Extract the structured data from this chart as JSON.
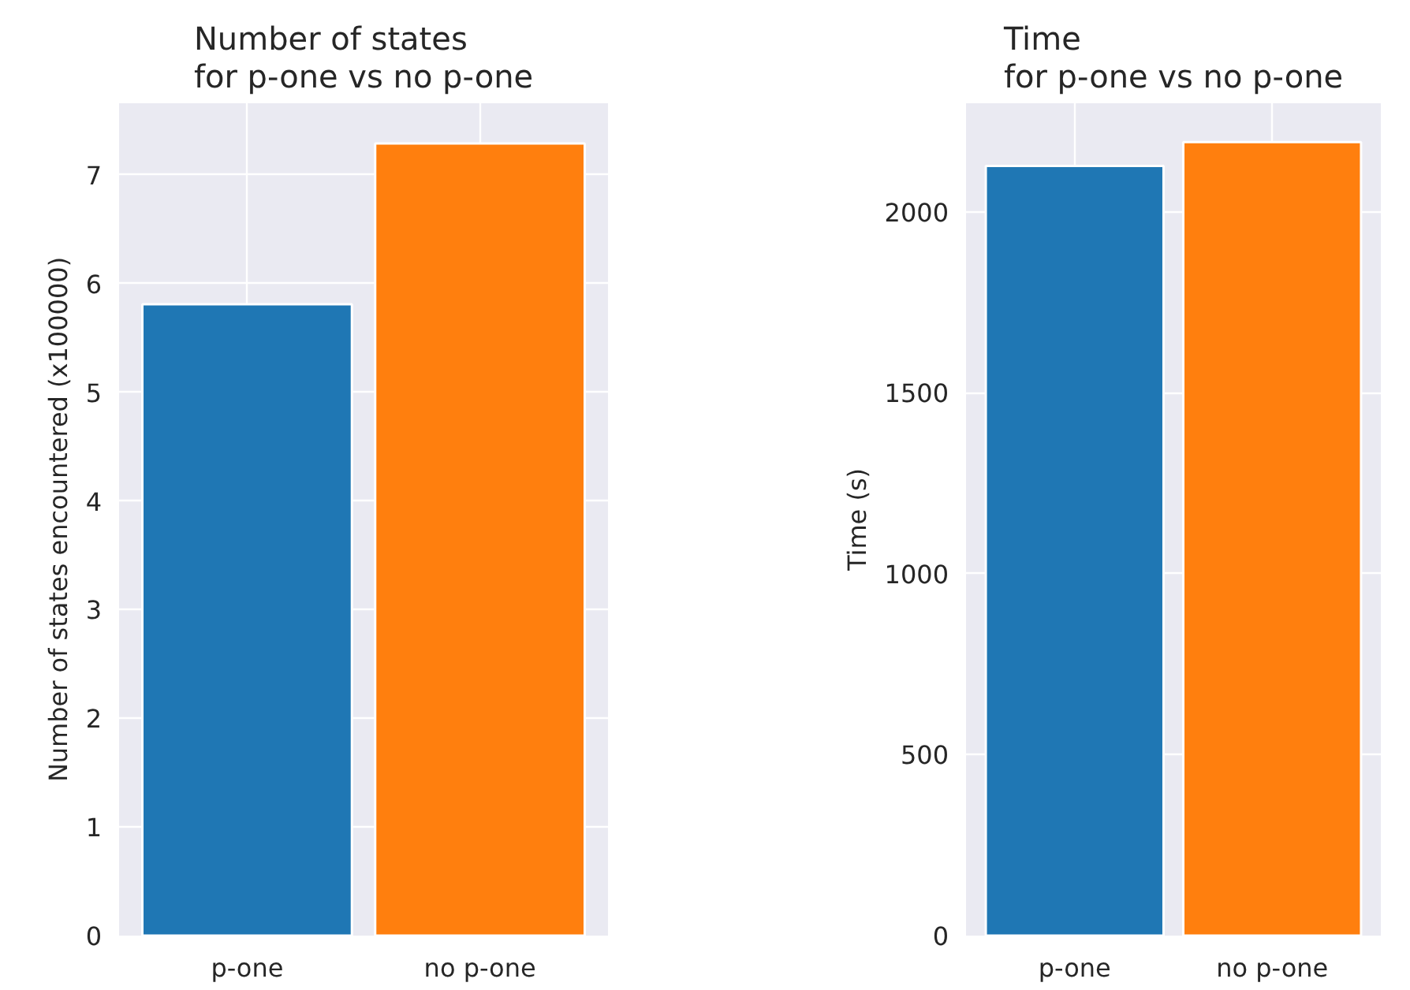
{
  "chart_data": [
    {
      "type": "bar",
      "title": "Number of states\nfor p-one vs no p-one",
      "ylabel": "Number of states encountered (x100000)",
      "categories": [
        "p-one",
        "no p-one"
      ],
      "values": [
        5.81,
        7.29
      ],
      "colors": [
        "#1f77b4",
        "#ff7f0e"
      ],
      "ylim": [
        0,
        7.66
      ],
      "yticks": [
        0,
        1,
        2,
        3,
        4,
        5,
        6,
        7
      ],
      "grid": true
    },
    {
      "type": "bar",
      "title": "Time\nfor p-one vs no p-one",
      "ylabel": "Time (s)",
      "categories": [
        "p-one",
        "no p-one"
      ],
      "values": [
        2127,
        2193
      ],
      "colors": [
        "#1f77b4",
        "#ff7f0e"
      ],
      "ylim": [
        0,
        2300
      ],
      "yticks": [
        0,
        500,
        1000,
        1500,
        2000
      ],
      "grid": true
    }
  ]
}
